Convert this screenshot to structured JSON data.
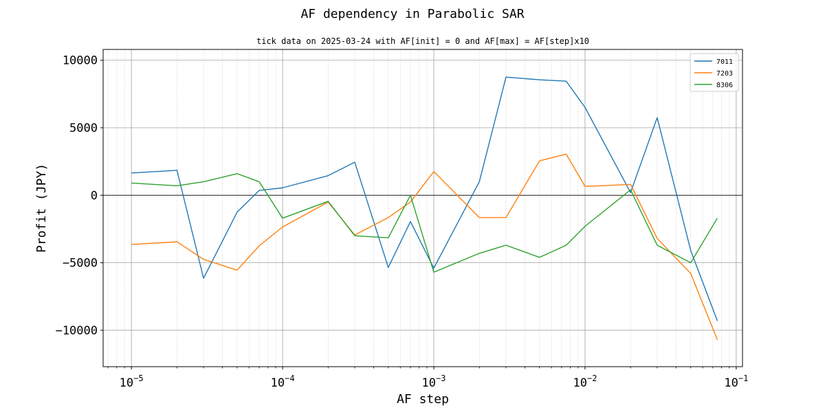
{
  "chart_data": {
    "type": "line",
    "title": "AF dependency in Parabolic SAR",
    "subtitle": "tick data on 2025-03-24 with AF[init] = 0 and AF[max] = AF[step]x10",
    "xlabel": "AF step",
    "ylabel": "Profit (JPY)",
    "xscale": "log",
    "xlim": [
      6.5e-06,
      0.11
    ],
    "ylim": [
      -12700,
      10800
    ],
    "grid": true,
    "legend_position": "top-right",
    "xticks": [
      {
        "value": 1e-05,
        "base": "10",
        "exp": "−5"
      },
      {
        "value": 0.0001,
        "base": "10",
        "exp": "−4"
      },
      {
        "value": 0.001,
        "base": "10",
        "exp": "−3"
      },
      {
        "value": 0.01,
        "base": "10",
        "exp": "−2"
      },
      {
        "value": 0.1,
        "base": "10",
        "exp": "−1"
      }
    ],
    "yticks": [
      {
        "value": 10000,
        "label": "10000"
      },
      {
        "value": 5000,
        "label": "5000"
      },
      {
        "value": 0,
        "label": "0"
      },
      {
        "value": -5000,
        "label": "−5000"
      },
      {
        "value": -10000,
        "label": "−10000"
      }
    ],
    "x": [
      1e-05,
      2e-05,
      3e-05,
      5e-05,
      7e-05,
      0.0001,
      0.0002,
      0.0003,
      0.0005,
      0.0007,
      0.001,
      0.002,
      0.003,
      0.005,
      0.0075,
      0.01,
      0.02,
      0.03,
      0.05,
      0.075
    ],
    "series": [
      {
        "name": "7011",
        "color": "#1f77b4",
        "values": [
          1650,
          1850,
          -6150,
          -1250,
          350,
          550,
          1450,
          2450,
          -5350,
          -1950,
          -5400,
          1000,
          8750,
          8550,
          8450,
          6500,
          200,
          5750,
          -4100,
          -9300
        ]
      },
      {
        "name": "7203",
        "color": "#ff7f0e",
        "values": [
          -3650,
          -3450,
          -4750,
          -5550,
          -3750,
          -2350,
          -500,
          -2950,
          -1650,
          -500,
          1750,
          -1650,
          -1650,
          2550,
          3050,
          650,
          800,
          -3200,
          -5800,
          -10700
        ]
      },
      {
        "name": "8306",
        "color": "#2ca02c",
        "values": [
          900,
          700,
          1000,
          1600,
          1000,
          -1700,
          -450,
          -3000,
          -3150,
          0,
          -5700,
          -4300,
          -3700,
          -4600,
          -3700,
          -2300,
          400,
          -3700,
          -5000,
          -1700
        ]
      }
    ]
  }
}
